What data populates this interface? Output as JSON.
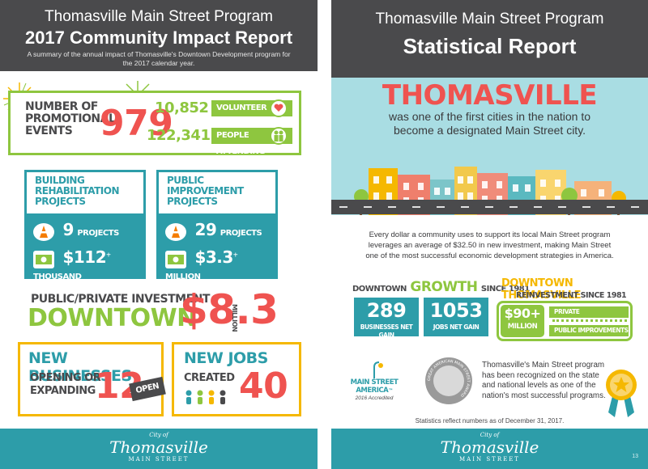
{
  "left": {
    "header": {
      "title": "Thomasville Main Street Program",
      "subtitle": "2017 Community Impact Report",
      "summary": "A summary of the annual impact of Thomasville's Downtown Development program for the 2017 calendar year."
    },
    "events": {
      "label": "NUMBER OF PROMOTIONAL EVENTS",
      "label_line1": "NUMBER OF",
      "label_line2": "PROMOTIONAL",
      "label_line3": "EVENTS",
      "value": "979",
      "volunteer_value": "10,852",
      "volunteer_label": "VOLUNTEER HOURS",
      "attending_value": "122,341",
      "attending_label": "PEOPLE ATTENDING"
    },
    "building": {
      "heading_line1": "BUILDING",
      "heading_line2": "REHABILITATION",
      "heading_line3": "PROJECTS",
      "projects_value": "9",
      "projects_label": "PROJECTS",
      "amount_value": "$112",
      "amount_sup": "+",
      "amount_label": "THOUSAND"
    },
    "public": {
      "heading_line1": "PUBLIC",
      "heading_line2": "IMPROVEMENT",
      "heading_line3": "PROJECTS",
      "projects_value": "29",
      "projects_label": "PROJECTS",
      "amount_value": "$3.3",
      "amount_sup": "+",
      "amount_label": "MILLION"
    },
    "investment": {
      "label": "PUBLIC/PRIVATE INVESTMENT",
      "place": "DOWNTOWN",
      "value": "$8.3",
      "unit": "MILLION"
    },
    "businesses": {
      "heading": "NEW BUSINESSES",
      "sub_line1": "OPENING OR",
      "sub_line2": "EXPANDING",
      "value": "12",
      "sign": "OPEN"
    },
    "jobs": {
      "heading": "NEW JOBS",
      "sub": "CREATED",
      "value": "40"
    },
    "footer": {
      "city": "City of",
      "name": "Thomasville",
      "ms": "MAIN STREET"
    }
  },
  "right": {
    "header": {
      "title": "Thomasville Main Street Program",
      "subtitle": "Statistical Report"
    },
    "banner": {
      "city": "THOMASVILLE",
      "line1": "was one of the first cities in the nation to",
      "line2": "become a designated Main Street city."
    },
    "investment_text": {
      "line1": "Every dollar a community uses to support its local Main Street program",
      "line2": "leverages an average of $32.50 in new investment, making Main Street",
      "line3": "one of the most successful economic development strategies in America."
    },
    "growth": {
      "prefix": "DOWNTOWN",
      "word": "GROWTH",
      "suffix": "SINCE 1981",
      "businesses_value": "289",
      "businesses_label": "BUSINESSES NET GAIN",
      "jobs_value": "1053",
      "jobs_label": "JOBS NET GAIN"
    },
    "reinvestment": {
      "title": "DOWNTOWN THOMASVILLE",
      "subtitle": "REINVESTMENT SINCE 1981",
      "value": "$90+",
      "unit": "MILLION",
      "private": "PRIVATE IMPROVEMENTS",
      "public": "PUBLIC IMPROVEMENTS"
    },
    "recognition": {
      "ms_line1": "MAIN STREET",
      "ms_line2": "AMERICA",
      "ms_tm": "™",
      "accredited": "2016 Accredited",
      "award_ring": "GREAT AMERICAN MAIN STREET AWARD",
      "line1": "Thomasville's Main Street program",
      "line2": "has been recognized on the state",
      "line3": "and national levels as one of the",
      "line4": "nation's most successful programs."
    },
    "note": "Statistics reflect numbers as of December 31, 2017.",
    "footer": {
      "city": "City of",
      "name": "Thomasville",
      "ms": "MAIN STREET",
      "page": "13"
    }
  },
  "colors": {
    "teal": "#2d9da9",
    "green": "#8ec63f",
    "red": "#ef5350",
    "dark": "#4a4a4c",
    "gold": "#f5b800"
  }
}
